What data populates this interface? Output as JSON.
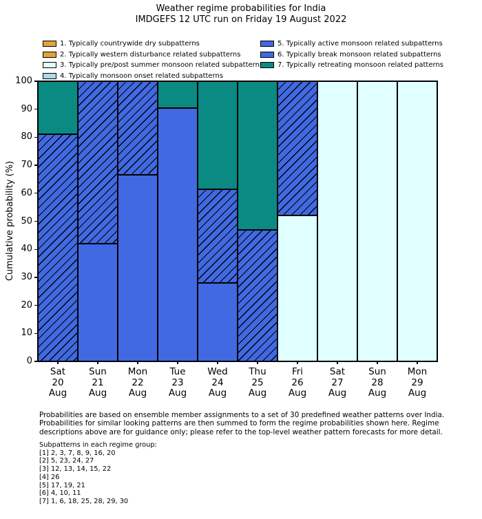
{
  "chart_data": {
    "type": "bar",
    "stacked": true,
    "title": "Weather regime probabilities for India",
    "subtitle": "IMDGEFS 12 UTC run on Friday 19 August 2022",
    "ylabel": "Cumulative probability (%)",
    "ylim": [
      0,
      100
    ],
    "yticks": [
      0,
      10,
      20,
      30,
      40,
      50,
      60,
      70,
      80,
      90,
      100
    ],
    "grid": false,
    "legend_position": "upper left, two columns, frameless",
    "categories": [
      {
        "day": "Sat",
        "date": "20",
        "month": "Aug"
      },
      {
        "day": "Sun",
        "date": "21",
        "month": "Aug"
      },
      {
        "day": "Mon",
        "date": "22",
        "month": "Aug"
      },
      {
        "day": "Tue",
        "date": "23",
        "month": "Aug"
      },
      {
        "day": "Wed",
        "date": "24",
        "month": "Aug"
      },
      {
        "day": "Thu",
        "date": "25",
        "month": "Aug"
      },
      {
        "day": "Fri",
        "date": "26",
        "month": "Aug"
      },
      {
        "day": "Sat",
        "date": "27",
        "month": "Aug"
      },
      {
        "day": "Sun",
        "date": "28",
        "month": "Aug"
      },
      {
        "day": "Mon",
        "date": "29",
        "month": "Aug"
      }
    ],
    "series": [
      {
        "regime": 1,
        "name": "1. Typically countrywide dry subpatterns",
        "values": [
          0,
          0,
          0,
          0,
          0,
          0,
          0,
          0,
          0,
          0
        ]
      },
      {
        "regime": 2,
        "name": "2. Typically western disturbance related subpatterns",
        "values": [
          0,
          0,
          0,
          0,
          0,
          0,
          0,
          0,
          0,
          0
        ]
      },
      {
        "regime": 3,
        "name": "3. Typically pre/post summer monsoon related subpatterns",
        "values": [
          0,
          0,
          0,
          0,
          0,
          0,
          52,
          100,
          100,
          100
        ]
      },
      {
        "regime": 4,
        "name": "4. Typically monsoon onset related subpatterns",
        "values": [
          0,
          0,
          0,
          0,
          0,
          0,
          0,
          0,
          0,
          0
        ]
      },
      {
        "regime": 5,
        "name": "5. Typically active monsoon related subpatterns",
        "values": [
          0,
          42,
          66.5,
          90.5,
          28,
          0,
          0,
          0,
          0,
          0
        ]
      },
      {
        "regime": 6,
        "name": "6. Typically break monsoon related subpatterns",
        "values": [
          81,
          58,
          33.5,
          0,
          33.5,
          47,
          48,
          0,
          0,
          0
        ]
      },
      {
        "regime": 7,
        "name": "7. Typically retreating monsoon related patterns",
        "values": [
          19,
          0,
          0,
          9.5,
          38.5,
          53,
          0,
          0,
          0,
          0
        ]
      }
    ]
  },
  "legend": {
    "items": [
      {
        "id": 1,
        "label": "1. Typically countrywide dry subpatterns",
        "color": "#E2A33D",
        "hatch": false
      },
      {
        "id": 2,
        "label": "2. Typically western disturbance related subpatterns",
        "color": "#E2A33D",
        "hatch": true
      },
      {
        "id": 3,
        "label": "3. Typically pre/post summer monsoon related subpatterns",
        "color": "#E0FFFF",
        "hatch": false
      },
      {
        "id": 4,
        "label": "4. Typically monsoon onset related subpatterns",
        "color": "#ADD8E6",
        "hatch": false
      },
      {
        "id": 5,
        "label": "5. Typically active monsoon related subpatterns",
        "color": "#4169E1",
        "hatch": false
      },
      {
        "id": 6,
        "label": "6. Typically break monsoon related subpatterns",
        "color": "#4169E1",
        "hatch": true
      },
      {
        "id": 7,
        "label": "7. Typically retreating monsoon related patterns",
        "color": "#0A8A82",
        "hatch": false
      }
    ]
  },
  "footer": {
    "lines": [
      "Probabilities are based on ensemble member assignments to a set of 30 predefined weather patterns over India.",
      "Probabilities for similar looking patterns are then summed to form the regime probabilities shown here. Regime",
      "descriptions above are for guidance only; please refer to the top-level weather pattern forecasts for more detail."
    ]
  },
  "subpatterns": {
    "heading": "Subpatterns in each regime group:",
    "groups": [
      "[1] 2, 3, 7, 8, 9, 16, 20",
      "[2] 5, 23, 24, 27",
      "[3] 12, 13, 14, 15, 22",
      "[4] 26",
      "[5] 17, 19, 21",
      "[6] 4, 10, 11",
      "[7] 1, 6, 18, 25, 28, 29, 30"
    ]
  },
  "colors": {
    "background": "#FFFFFF",
    "bar_edge": "#000000",
    "text": "#000000"
  }
}
